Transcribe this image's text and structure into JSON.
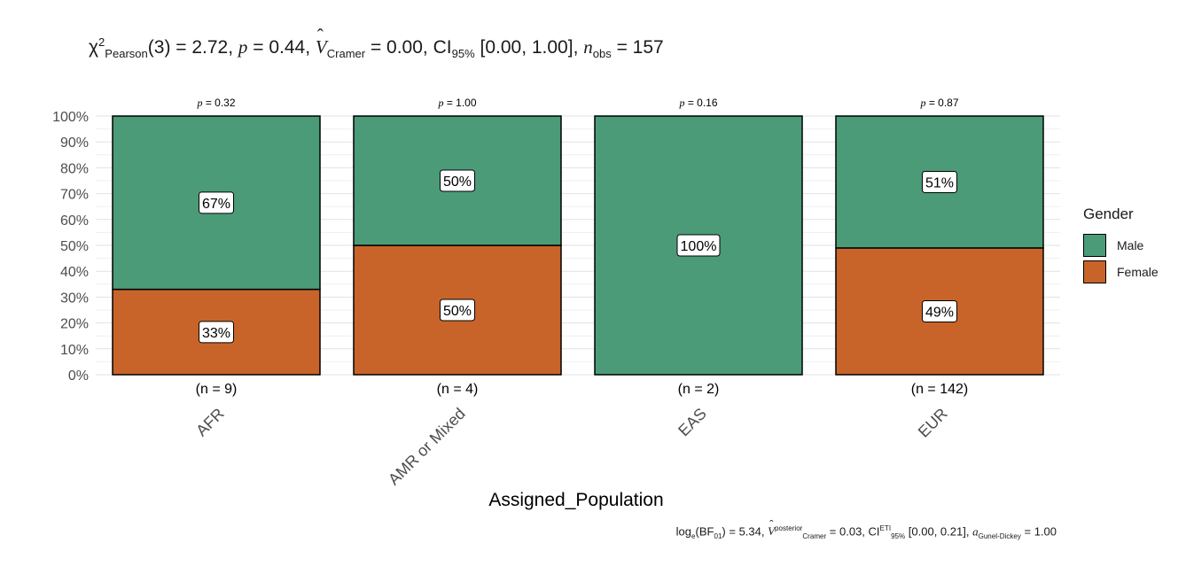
{
  "subtitle": {
    "chi": "χ",
    "chi_sup": "2",
    "chi_sub": "Pearson",
    "chi_value": "(3) = 2.72, ",
    "p_label": "p",
    "p_value": " = 0.44, ",
    "v_label": "V",
    "v_sub": "Cramer",
    "v_value": " = 0.00, CI",
    "ci_sub": "95%",
    "ci_value": " [0.00, 1.00], ",
    "n_label": "n",
    "n_sub": "obs",
    "n_value": " = 157"
  },
  "caption": {
    "log": "log",
    "log_sub": "e",
    "bf": "(BF",
    "bf_sub": "01",
    "bf_value": ") = 5.34, ",
    "v_label": "V",
    "v_sup": "posterior",
    "v_sub": "Cramer",
    "v_value": " = 0.03, CI",
    "ci_sup": "ETI",
    "ci_sub": "95%",
    "ci_value": " [0.00, 0.21], ",
    "a_label": "a",
    "a_sub": "Gunel-Dickey",
    "a_value": " = 1.00"
  },
  "legend": {
    "title": "Gender",
    "items": [
      {
        "label": "Male",
        "color": "#4B9B78"
      },
      {
        "label": "Female",
        "color": "#C86429"
      }
    ]
  },
  "chart_data": {
    "type": "bar",
    "stacked": true,
    "xlabel": "Assigned_Population",
    "ylabel": "",
    "ylim": [
      0,
      100
    ],
    "yticks": [
      "0%",
      "10%",
      "20%",
      "30%",
      "40%",
      "50%",
      "60%",
      "70%",
      "80%",
      "90%",
      "100%"
    ],
    "categories": [
      "AFR",
      "AMR or Mixed",
      "EAS",
      "EUR"
    ],
    "series": [
      {
        "name": "Female",
        "color": "#C86429",
        "values": [
          33,
          50,
          0,
          49
        ],
        "labels": [
          "33%",
          "50%",
          "",
          "49%"
        ]
      },
      {
        "name": "Male",
        "color": "#4B9B78",
        "values": [
          67,
          50,
          100,
          51
        ],
        "labels": [
          "67%",
          "50%",
          "100%",
          "51%"
        ]
      }
    ],
    "counts": [
      "(n = 9)",
      "(n = 4)",
      "(n = 2)",
      "(n = 142)"
    ],
    "pvalues": [
      "0.32",
      "1.00",
      "0.16",
      "0.87"
    ],
    "p_label": "p"
  }
}
